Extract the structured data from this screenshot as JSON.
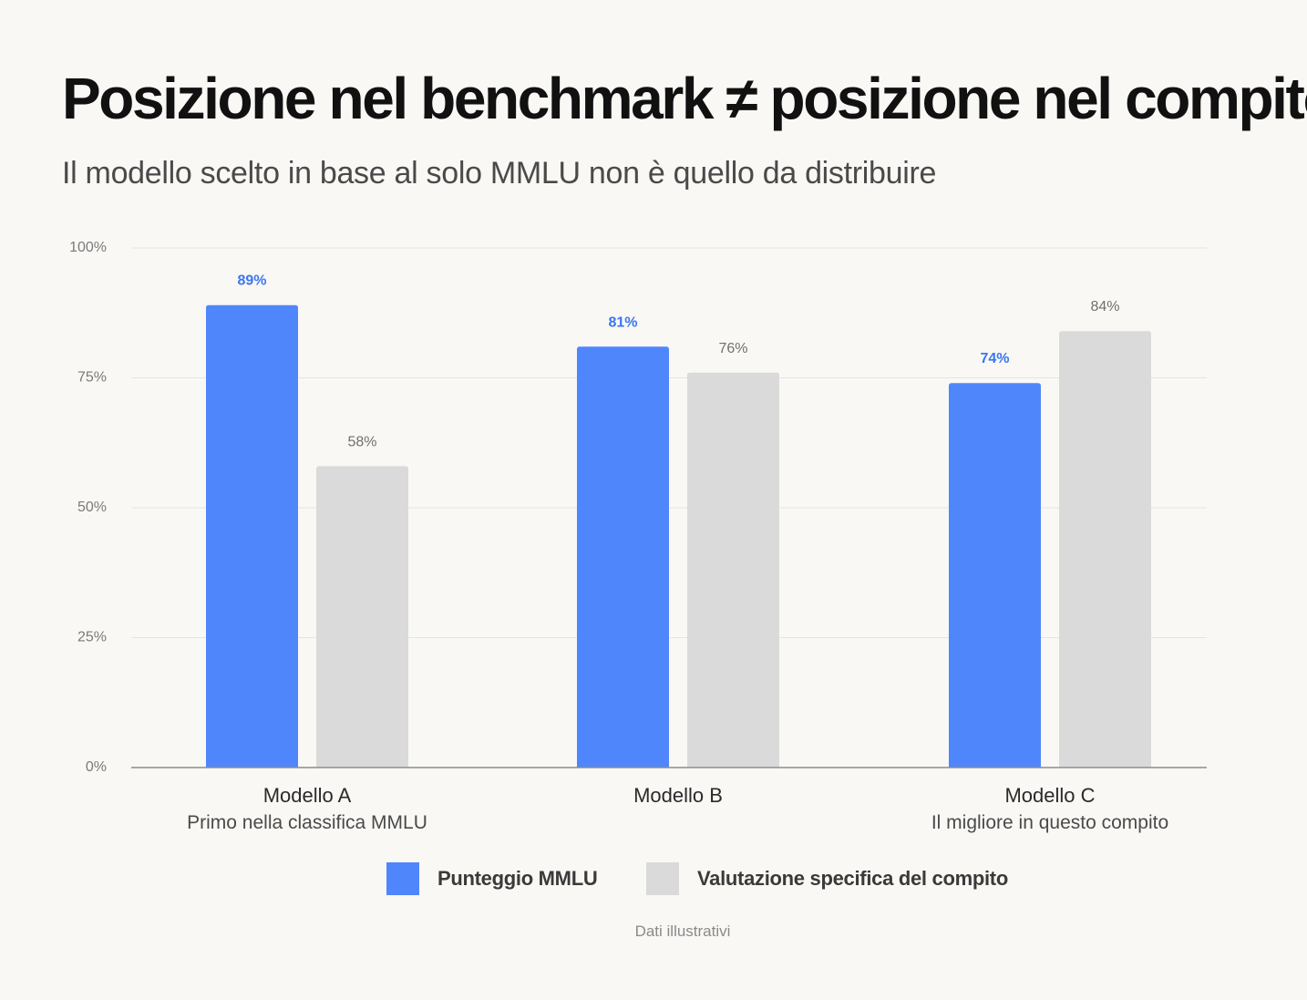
{
  "header": {
    "title": "Posizione nel benchmark ≠ posizione nel compito",
    "subtitle": "Il modello scelto in base al solo MMLU non è quello da distribuire"
  },
  "chart_data": {
    "type": "bar",
    "categories": [
      "Modello A",
      "Modello B",
      "Modello C"
    ],
    "category_sublabels": [
      "Primo nella classifica MMLU",
      "",
      "Il migliore in questo compito"
    ],
    "series": [
      {
        "name": "Punteggio MMLU",
        "values": [
          89,
          81,
          74
        ],
        "color": "#5086fb",
        "label_color": "#3b76f0"
      },
      {
        "name": "Valutazione specifica del compito",
        "values": [
          58,
          76,
          84
        ],
        "color": "#dadada",
        "label_color": "#707070"
      }
    ],
    "value_labels": [
      [
        "89%",
        "81%",
        "74%"
      ],
      [
        "58%",
        "76%",
        "84%"
      ]
    ],
    "yticks": [
      "0%",
      "25%",
      "50%",
      "75%",
      "100%"
    ],
    "ytick_values": [
      0,
      25,
      50,
      75,
      100
    ],
    "ylim": [
      0,
      100
    ],
    "grid": true,
    "legend_position": "bottom-center"
  },
  "legend": {
    "items": [
      {
        "label": "Punteggio MMLU",
        "color": "#5086fb"
      },
      {
        "label": "Valutazione specifica del compito",
        "color": "#dadada"
      }
    ]
  },
  "footnote": "Dati illustrativi"
}
